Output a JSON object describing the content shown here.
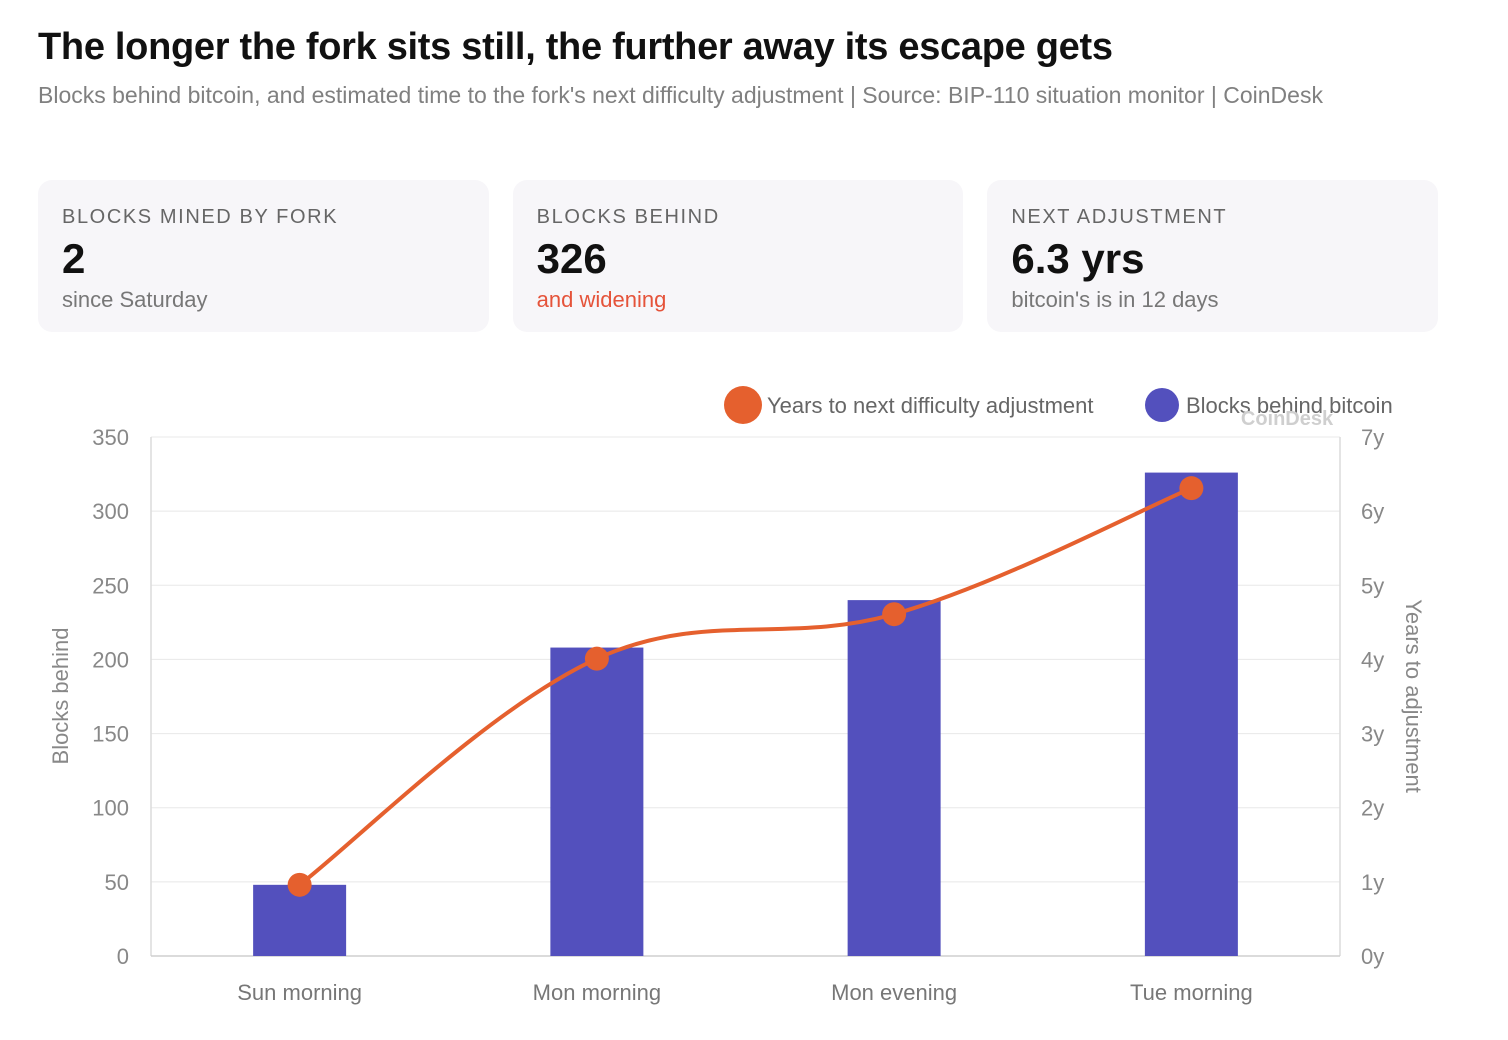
{
  "header": {
    "title": "The longer the fork sits still, the further away its escape gets",
    "subtitle": "Blocks behind bitcoin, and estimated time to the fork's next difficulty adjustment | Source: BIP-110 situation monitor | CoinDesk"
  },
  "cards": [
    {
      "label": "BLOCKS MINED BY FORK",
      "value": "2",
      "note": "since Saturday"
    },
    {
      "label": "BLOCKS BEHIND",
      "value": "326",
      "note": "and widening"
    },
    {
      "label": "NEXT ADJUSTMENT",
      "value": "6.3 yrs",
      "note": "bitcoin's is in 12 days"
    }
  ],
  "watermark": "CoinDesk",
  "colors": {
    "bars": "#5350bd",
    "line": "#e5602e",
    "alert": "#e5533a"
  },
  "chart_data": {
    "type": "bar",
    "categories": [
      "Sun morning",
      "Mon morning",
      "Mon evening",
      "Tue morning"
    ],
    "series": [
      {
        "name": "Blocks behind bitcoin",
        "type": "bar",
        "axis": "left",
        "values": [
          48,
          208,
          240,
          326
        ]
      },
      {
        "name": "Years to next difficulty adjustment",
        "type": "line",
        "axis": "right",
        "values": [
          0.96,
          4.01,
          4.61,
          6.31
        ]
      }
    ],
    "ylabel": "Blocks behind",
    "ylabel_right": "Years to adjustment",
    "ylim": [
      0,
      350
    ],
    "ylim_right": [
      0,
      7
    ],
    "yticks": [
      "0",
      "50",
      "100",
      "150",
      "200",
      "250",
      "300",
      "350"
    ],
    "yticks_right": [
      "0y",
      "1y",
      "2y",
      "3y",
      "4y",
      "5y",
      "6y",
      "7y"
    ],
    "grid": true,
    "legend_position": "top-right"
  }
}
